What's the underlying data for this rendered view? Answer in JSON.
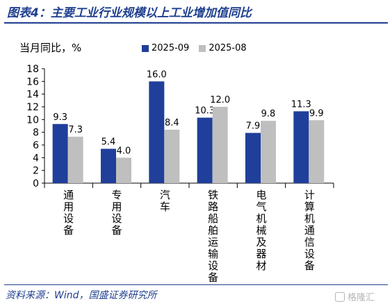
{
  "title": "图表4：主要工业行业规模以上工业增加值同比",
  "source": "资料来源：Wind，国盛证券研究所",
  "watermark": "格隆汇",
  "colors": {
    "series1": "#1f3f9b",
    "series2": "#bfbfbf",
    "accent": "#1f3f8f"
  },
  "chart_data": {
    "type": "bar",
    "ylabel": "当月同比，%",
    "ylim": [
      0,
      18
    ],
    "yticks": [
      0,
      2,
      4,
      6,
      8,
      10,
      12,
      14,
      16,
      18
    ],
    "categories": [
      "通用设备",
      "专用设备",
      "汽车",
      "铁路船舶运输设备",
      "电气机械及器材",
      "计算机通信设备"
    ],
    "series": [
      {
        "name": "2025-09",
        "values": [
          9.3,
          5.4,
          16.0,
          10.3,
          7.9,
          11.3
        ],
        "labels": [
          "9.3",
          "5.4",
          "16.0",
          "10.3",
          "7.9",
          "11.3"
        ]
      },
      {
        "name": "2025-08",
        "values": [
          7.3,
          4.0,
          8.4,
          12.0,
          9.8,
          9.9
        ],
        "labels": [
          "7.3",
          "4.0",
          "8.4",
          "12.0",
          "9.8",
          "9.9"
        ]
      }
    ],
    "grid": false,
    "legend": "top"
  }
}
